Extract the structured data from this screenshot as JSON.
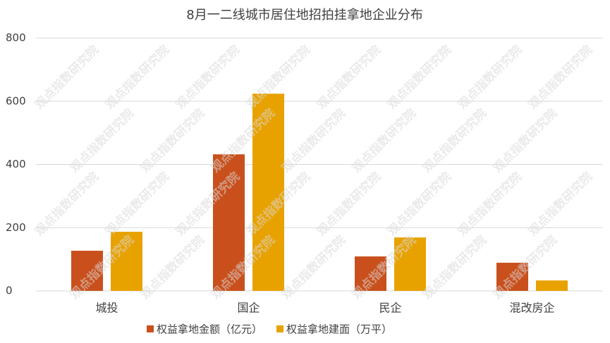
{
  "chart_data": {
    "type": "bar",
    "title": "8月一二线城市居住地招拍挂拿地企业分布",
    "categories": [
      "城投",
      "国企",
      "民企",
      "混改房企"
    ],
    "series": [
      {
        "name": "权益拿地金额（亿元）",
        "color": "#c9501c",
        "values": [
          127,
          432,
          109,
          89
        ]
      },
      {
        "name": "权益拿地建面（万平）",
        "color": "#e8a200",
        "values": [
          187,
          624,
          169,
          33
        ]
      }
    ],
    "ylim": [
      0,
      800
    ],
    "yticks": [
      0,
      200,
      400,
      600,
      800
    ],
    "grid": true,
    "legend": "bottom",
    "watermark": "观点指数研究院"
  }
}
